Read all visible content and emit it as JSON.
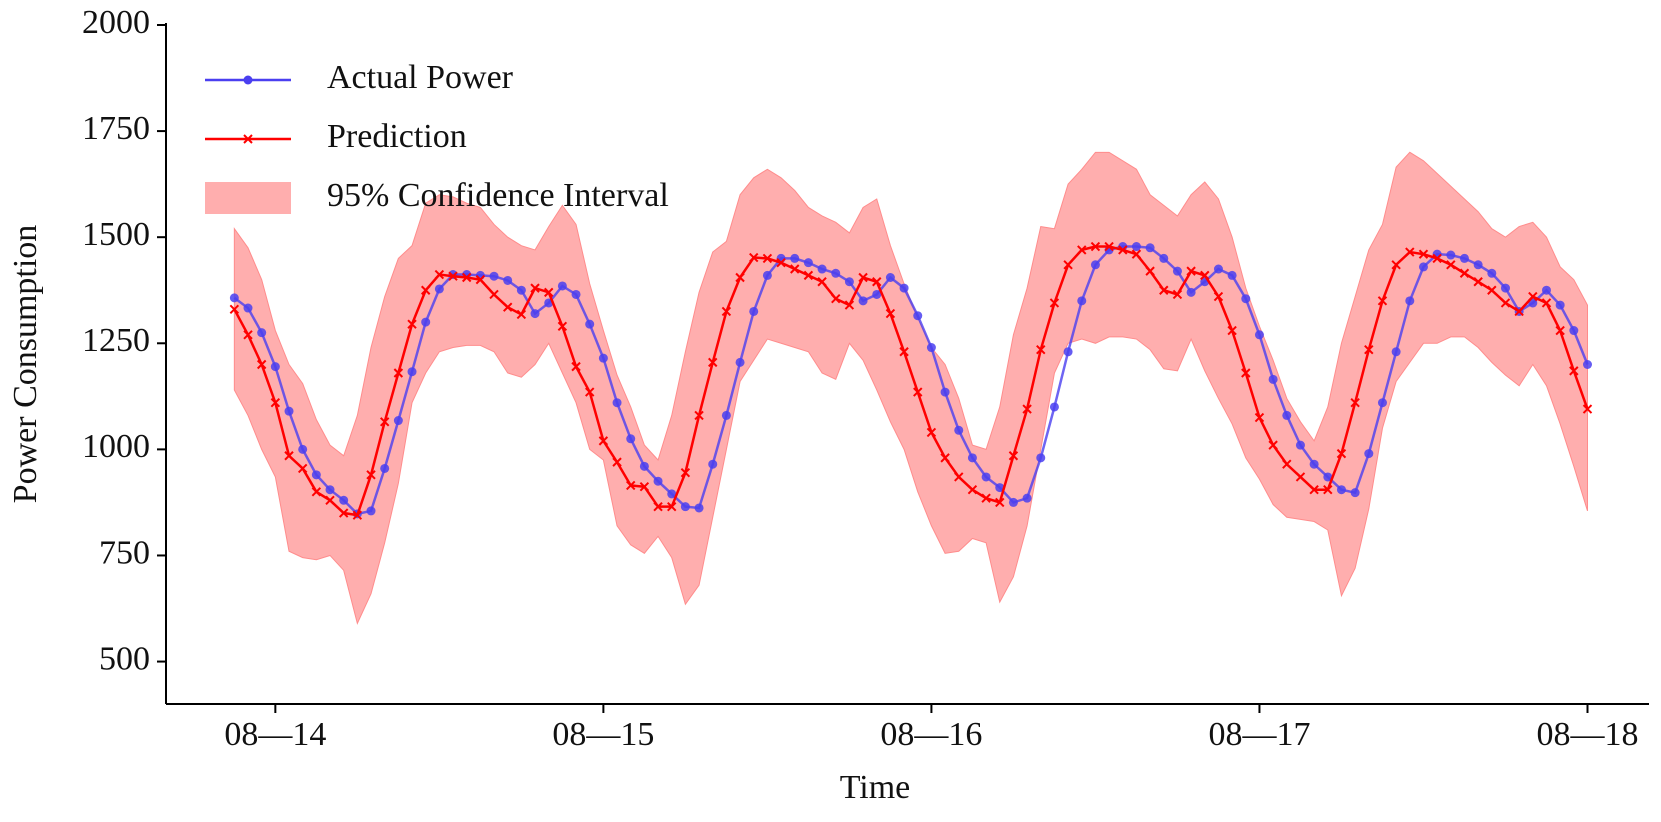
{
  "chart_data": {
    "type": "line",
    "xlabel": "Time",
    "ylabel": "Power Consumption",
    "x": [
      -3,
      -2,
      -1,
      0,
      1,
      2,
      3,
      4,
      5,
      6,
      7,
      8,
      9,
      10,
      11,
      12,
      13,
      14,
      15,
      16,
      17,
      18,
      19,
      20,
      21,
      22,
      23,
      24,
      25,
      26,
      27,
      28,
      29,
      30,
      31,
      32,
      33,
      34,
      35,
      36,
      37,
      38,
      39,
      40,
      41,
      42,
      43,
      44,
      45,
      46,
      47,
      48,
      49,
      50,
      51,
      52,
      53,
      54,
      55,
      56,
      57,
      58,
      59,
      60,
      61,
      62,
      63,
      64,
      65,
      66,
      67,
      68,
      69,
      70,
      71,
      72,
      73,
      74,
      75,
      76,
      77,
      78,
      79,
      80,
      81,
      82,
      83,
      84,
      85,
      86,
      87,
      88,
      89,
      90,
      91,
      92,
      93,
      94,
      95,
      96
    ],
    "series": [
      {
        "name": "Actual Power",
        "color": "#4a3ff0",
        "marker": "o",
        "values": [
          1357,
          1333,
          1275,
          1195,
          1090,
          1000,
          940,
          905,
          880,
          848,
          855,
          955,
          1068,
          1183,
          1300,
          1378,
          1412,
          1412,
          1410,
          1408,
          1398,
          1375,
          1320,
          1345,
          1385,
          1365,
          1295,
          1215,
          1110,
          1025,
          960,
          925,
          895,
          865,
          862,
          965,
          1080,
          1205,
          1325,
          1410,
          1450,
          1450,
          1440,
          1425,
          1415,
          1395,
          1350,
          1365,
          1405,
          1380,
          1315,
          1240,
          1135,
          1045,
          980,
          935,
          910,
          875,
          885,
          980,
          1100,
          1230,
          1350,
          1435,
          1470,
          1478,
          1478,
          1475,
          1450,
          1420,
          1370,
          1395,
          1425,
          1410,
          1355,
          1270,
          1165,
          1080,
          1010,
          965,
          935,
          905,
          898,
          990,
          1110,
          1230,
          1350,
          1430,
          1460,
          1458,
          1450,
          1435,
          1415,
          1380,
          1325,
          1345,
          1375,
          1340,
          1280,
          1200
        ]
      },
      {
        "name": "Prediction",
        "color": "#ff0000",
        "marker": "x",
        "values": [
          1330,
          1270,
          1200,
          1110,
          985,
          955,
          900,
          880,
          850,
          845,
          940,
          1065,
          1180,
          1295,
          1375,
          1412,
          1408,
          1405,
          1400,
          1365,
          1335,
          1318,
          1380,
          1370,
          1290,
          1195,
          1135,
          1020,
          970,
          915,
          912,
          865,
          865,
          945,
          1080,
          1205,
          1325,
          1405,
          1452,
          1450,
          1440,
          1425,
          1410,
          1395,
          1355,
          1340,
          1405,
          1395,
          1320,
          1230,
          1135,
          1040,
          980,
          935,
          905,
          885,
          875,
          985,
          1095,
          1235,
          1345,
          1435,
          1470,
          1478,
          1478,
          1470,
          1460,
          1420,
          1375,
          1365,
          1420,
          1410,
          1360,
          1280,
          1180,
          1075,
          1010,
          965,
          935,
          905,
          905,
          990,
          1110,
          1235,
          1350,
          1435,
          1465,
          1460,
          1450,
          1435,
          1415,
          1395,
          1375,
          1345,
          1325,
          1360,
          1345,
          1280,
          1185,
          1095
        ]
      }
    ],
    "band": {
      "name": "95% Confidence Interval",
      "color": "#ff8c8c",
      "lower": [
        1140,
        1080,
        1000,
        935,
        760,
        745,
        740,
        750,
        715,
        590,
        660,
        780,
        920,
        1110,
        1180,
        1230,
        1240,
        1245,
        1245,
        1230,
        1180,
        1170,
        1200,
        1250,
        1180,
        1110,
        1000,
        975,
        820,
        775,
        755,
        795,
        745,
        635,
        680,
        840,
        1000,
        1160,
        1210,
        1260,
        1250,
        1240,
        1230,
        1180,
        1165,
        1250,
        1210,
        1140,
        1065,
        1000,
        900,
        820,
        755,
        760,
        790,
        780,
        640,
        700,
        820,
        1000,
        1180,
        1250,
        1260,
        1250,
        1265,
        1265,
        1260,
        1235,
        1190,
        1185,
        1260,
        1185,
        1120,
        1060,
        980,
        930,
        870,
        840,
        835,
        830,
        810,
        655,
        720,
        860,
        1050,
        1160,
        1205,
        1250,
        1250,
        1265,
        1265,
        1240,
        1205,
        1175,
        1150,
        1200,
        1150,
        1060,
        960,
        855
      ],
      "upper": [
        1520,
        1475,
        1400,
        1280,
        1200,
        1155,
        1070,
        1010,
        985,
        1080,
        1240,
        1360,
        1450,
        1480,
        1580,
        1600,
        1595,
        1580,
        1570,
        1530,
        1500,
        1480,
        1470,
        1525,
        1575,
        1530,
        1390,
        1280,
        1175,
        1100,
        1010,
        975,
        1080,
        1230,
        1370,
        1465,
        1490,
        1600,
        1640,
        1660,
        1640,
        1610,
        1570,
        1550,
        1535,
        1510,
        1570,
        1590,
        1480,
        1390,
        1310,
        1240,
        1200,
        1120,
        1010,
        1000,
        1100,
        1270,
        1380,
        1525,
        1520,
        1625,
        1660,
        1700,
        1700,
        1680,
        1660,
        1600,
        1575,
        1550,
        1600,
        1630,
        1590,
        1500,
        1380,
        1290,
        1210,
        1120,
        1065,
        1020,
        1100,
        1250,
        1360,
        1470,
        1530,
        1665,
        1700,
        1680,
        1650,
        1620,
        1590,
        1560,
        1520,
        1500,
        1525,
        1535,
        1500,
        1430,
        1400,
        1340
      ]
    },
    "xlim": [
      -8,
      100.5
    ],
    "xticks": [
      {
        "value": 0,
        "label": "08—14"
      },
      {
        "value": 24,
        "label": "08—15"
      },
      {
        "value": 48,
        "label": "08—16"
      },
      {
        "value": 72,
        "label": "08—17"
      },
      {
        "value": 96,
        "label": "08—18"
      }
    ],
    "ylim": [
      400,
      2000
    ],
    "yticks": [
      500,
      750,
      1000,
      1250,
      1500,
      1750,
      2000
    ],
    "legend": "upper left",
    "grid": false
  }
}
